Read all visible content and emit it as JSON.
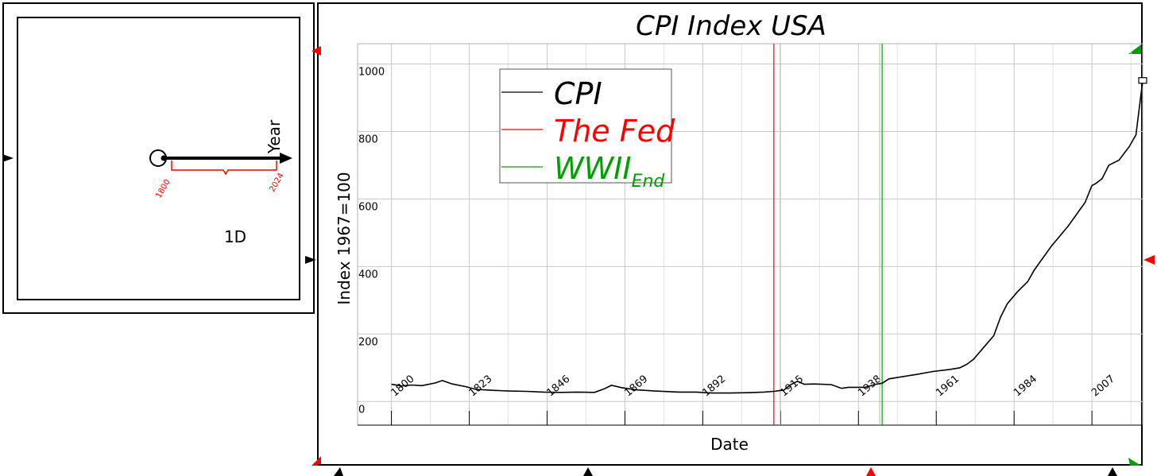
{
  "left_panel": {
    "axis_label": "Year",
    "range_start": "1800",
    "range_end": "2024",
    "dimension_label": "1D"
  },
  "colors": {
    "cpi": "#000000",
    "fed": "#ff0000",
    "wwii": "#00a000",
    "grid": "#c8c8c8",
    "marker_red": "#ff0000",
    "marker_green": "#00a000",
    "marker_black": "#000000"
  },
  "chart_data": {
    "type": "line",
    "title": "CPI Index USA",
    "xlabel": "Date",
    "ylabel": "Index 1967=100",
    "xlim": [
      1790,
      2022
    ],
    "ylim": [
      -70,
      1060
    ],
    "xticks": [
      1800,
      1823,
      1846,
      1869,
      1892,
      1915,
      1938,
      1961,
      1984,
      2007
    ],
    "yticks": [
      0,
      200,
      400,
      600,
      800,
      1000
    ],
    "grid": true,
    "legend": {
      "position": "top-left",
      "entries": [
        {
          "label": "CPI",
          "sub": ""
        },
        {
          "label": "The Fed",
          "sub": ""
        },
        {
          "label": "WWII",
          "sub": "End"
        }
      ]
    },
    "vlines": [
      {
        "name": "The Fed",
        "x": 1913
      },
      {
        "name": "WWII",
        "x": 1945
      }
    ],
    "series": [
      {
        "name": "CPI",
        "x": [
          1800,
          1803,
          1806,
          1809,
          1813,
          1815,
          1818,
          1822,
          1825,
          1830,
          1835,
          1840,
          1845,
          1850,
          1855,
          1860,
          1863,
          1865,
          1868,
          1872,
          1878,
          1885,
          1890,
          1895,
          1900,
          1905,
          1910,
          1913,
          1916,
          1918,
          1920,
          1922,
          1925,
          1930,
          1933,
          1935,
          1940,
          1943,
          1945,
          1947,
          1950,
          1955,
          1960,
          1965,
          1968,
          1970,
          1972,
          1975,
          1978,
          1980,
          1982,
          1985,
          1988,
          1990,
          1995,
          2000,
          2005,
          2007,
          2008,
          2010,
          2012,
          2015,
          2018,
          2020,
          2022
        ],
        "y": [
          51,
          46,
          49,
          47,
          55,
          62,
          52,
          44,
          36,
          33,
          31,
          30,
          28,
          27,
          28,
          27,
          38,
          48,
          41,
          35,
          31,
          28,
          28,
          25,
          25,
          26,
          28,
          30,
          34,
          50,
          60,
          51,
          52,
          50,
          39,
          42,
          42,
          51,
          54,
          67,
          72,
          80,
          89,
          95,
          100,
          110,
          125,
          160,
          195,
          250,
          290,
          325,
          355,
          390,
          460,
          520,
          590,
          640,
          645,
          660,
          700,
          715,
          755,
          790,
          950
        ]
      }
    ]
  }
}
